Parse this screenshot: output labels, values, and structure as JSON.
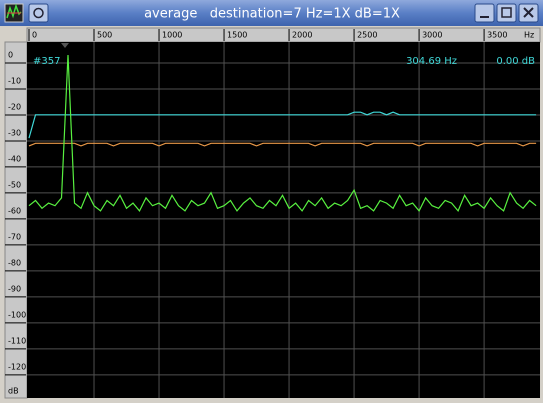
{
  "window": {
    "title": "average   destination=7 Hz=1X dB=1X"
  },
  "chart_data": {
    "type": "line",
    "x_label": "Hz",
    "y_label": "dB",
    "annotations": [
      "#357",
      "304.69 Hz",
      "0.00 dB"
    ],
    "xlim": [
      0,
      3930
    ],
    "ylim": [
      -132,
      5
    ],
    "xticks": [
      0,
      500,
      1000,
      1500,
      2000,
      2500,
      3000,
      3500
    ],
    "yticks": [
      0,
      -10,
      -20,
      -30,
      -40,
      -50,
      -60,
      -70,
      -80,
      -90,
      -100,
      -110,
      -120
    ],
    "grid": true,
    "x": [
      0,
      50,
      100,
      150,
      200,
      250,
      300,
      350,
      400,
      450,
      500,
      550,
      600,
      650,
      700,
      750,
      800,
      850,
      900,
      950,
      1000,
      1050,
      1100,
      1150,
      1200,
      1250,
      1300,
      1350,
      1400,
      1450,
      1500,
      1550,
      1600,
      1650,
      1700,
      1750,
      1800,
      1850,
      1900,
      1950,
      2000,
      2050,
      2100,
      2150,
      2200,
      2250,
      2300,
      2350,
      2400,
      2450,
      2500,
      2550,
      2600,
      2650,
      2700,
      2750,
      2800,
      2850,
      2900,
      2950,
      3000,
      3050,
      3100,
      3150,
      3200,
      3250,
      3300,
      3350,
      3400,
      3450,
      3500,
      3550,
      3600,
      3650,
      3700,
      3750,
      3800,
      3850,
      3900
    ],
    "series": [
      {
        "color": "#40d8d8",
        "values": [
          -32,
          -23,
          -23,
          -23,
          -23,
          -23,
          -23,
          -23,
          -23,
          -23,
          -23,
          -23,
          -23,
          -23,
          -23,
          -23,
          -23,
          -23,
          -23,
          -23,
          -23,
          -23,
          -23,
          -23,
          -23,
          -23,
          -23,
          -23,
          -23,
          -23,
          -23,
          -23,
          -23,
          -23,
          -23,
          -23,
          -23,
          -23,
          -23,
          -23,
          -23,
          -23,
          -23,
          -23,
          -23,
          -23,
          -23,
          -23,
          -23,
          -23,
          -22,
          -22,
          -23,
          -22,
          -22,
          -23,
          -22,
          -23,
          -23,
          -23,
          -23,
          -23,
          -23,
          -23,
          -23,
          -23,
          -23,
          -23,
          -23,
          -23,
          -23,
          -23,
          -23,
          -23,
          -23,
          -23,
          -23,
          -23,
          -23
        ]
      },
      {
        "color": "#e89848",
        "values": [
          -35,
          -34,
          -34,
          -34,
          -34,
          -34,
          -34,
          -34,
          -35,
          -34,
          -34,
          -34,
          -34,
          -35,
          -34,
          -34,
          -34,
          -34,
          -34,
          -34,
          -35,
          -34,
          -34,
          -34,
          -34,
          -34,
          -34,
          -35,
          -34,
          -34,
          -34,
          -34,
          -34,
          -34,
          -34,
          -35,
          -34,
          -34,
          -34,
          -34,
          -34,
          -34,
          -34,
          -34,
          -35,
          -34,
          -34,
          -34,
          -34,
          -34,
          -34,
          -34,
          -35,
          -34,
          -34,
          -34,
          -34,
          -34,
          -34,
          -34,
          -35,
          -34,
          -34,
          -34,
          -34,
          -34,
          -34,
          -34,
          -34,
          -35,
          -34,
          -34,
          -34,
          -34,
          -34,
          -34,
          -35,
          -34,
          -34
        ]
      },
      {
        "color": "#58f040",
        "values": [
          -58,
          -56,
          -59,
          -57,
          -58,
          -55,
          0,
          -57,
          -59,
          -53,
          -58,
          -60,
          -56,
          -58,
          -54,
          -59,
          -57,
          -60,
          -55,
          -58,
          -57,
          -59,
          -54,
          -58,
          -60,
          -56,
          -58,
          -57,
          -53,
          -59,
          -58,
          -56,
          -60,
          -57,
          -55,
          -58,
          -59,
          -56,
          -58,
          -54,
          -59,
          -57,
          -60,
          -56,
          -58,
          -55,
          -59,
          -57,
          -58,
          -56,
          -52,
          -59,
          -58,
          -60,
          -56,
          -57,
          -59,
          -54,
          -58,
          -57,
          -60,
          -55,
          -58,
          -59,
          -56,
          -57,
          -60,
          -54,
          -58,
          -57,
          -59,
          -55,
          -58,
          -60,
          -53,
          -57,
          -59,
          -56,
          -58
        ]
      }
    ]
  }
}
